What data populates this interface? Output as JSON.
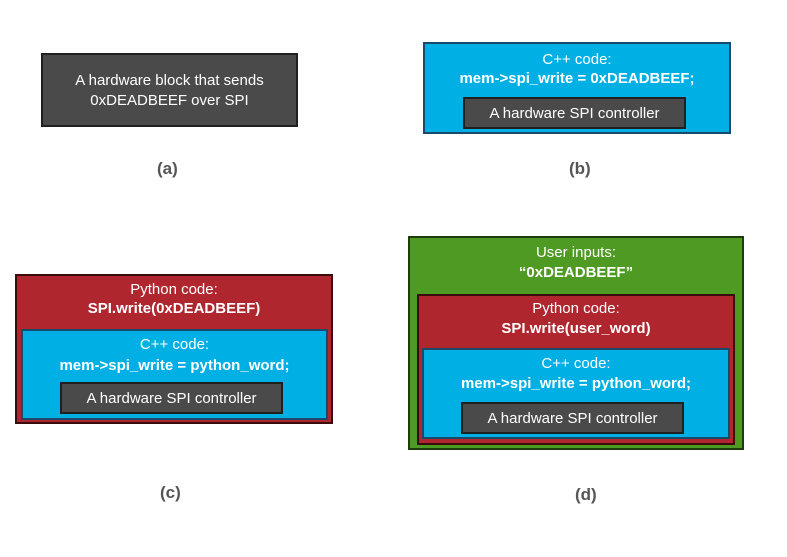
{
  "panel_a": {
    "block_line1": "A hardware block that sends",
    "block_line2": "0xDEADBEEF over SPI",
    "label": "(a)"
  },
  "panel_b": {
    "cpp_title": "C++ code:",
    "cpp_code": "mem->spi_write = 0xDEADBEEF;",
    "controller": "A hardware SPI controller",
    "label": "(b)"
  },
  "panel_c": {
    "python_title": "Python code:",
    "python_code": "SPI.write(0xDEADBEEF)",
    "cpp_title": "C++ code:",
    "cpp_code": "mem->spi_write = python_word;",
    "controller": "A hardware SPI controller",
    "label": "(c)"
  },
  "panel_d": {
    "user_title": "User inputs:",
    "user_value": "“0xDEADBEEF”",
    "python_title": "Python code:",
    "python_code": "SPI.write(user_word)",
    "cpp_title": "C++ code:",
    "cpp_code": "mem->spi_write = python_word;",
    "controller": "A hardware SPI controller",
    "label": "(d)"
  },
  "colors": {
    "hardware_gray": "#4a4a4a",
    "cpp_cyan": "#00b0e4",
    "python_red": "#b0262e",
    "user_green": "#4f9a22"
  }
}
